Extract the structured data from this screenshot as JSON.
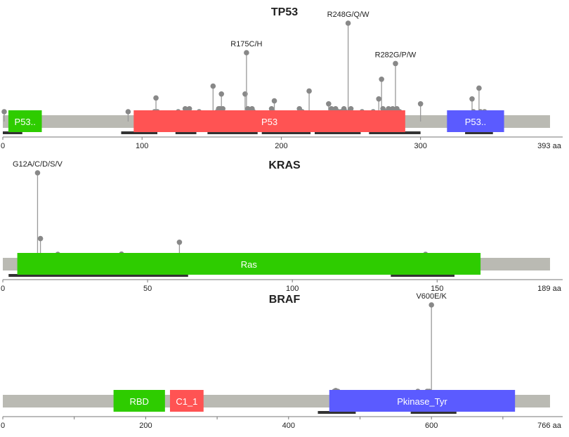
{
  "colors": {
    "backbone": "#babab3",
    "lollipop": "#999999",
    "head": "#888888",
    "region_bar": "#333333",
    "axis": "#777777",
    "text": "#222222",
    "domain_text": "#ffffff"
  },
  "chart_data": [
    {
      "type": "lollipop",
      "title": "TP53",
      "length": 393,
      "unit_label": "393 aa",
      "ticks": [
        0,
        100,
        200,
        300
      ],
      "domains": [
        {
          "name": "P53..",
          "start": 4,
          "end": 28,
          "color": "#2ecc00"
        },
        {
          "name": "P53",
          "start": 94,
          "end": 289,
          "color": "#ff5353"
        },
        {
          "name": "P53..",
          "start": 319,
          "end": 360,
          "color": "#5b5bff"
        }
      ],
      "regions": [
        {
          "start": 0,
          "end": 14
        },
        {
          "start": 85,
          "end": 111
        },
        {
          "start": 124,
          "end": 139
        },
        {
          "start": 147,
          "end": 183
        },
        {
          "start": 186,
          "end": 221
        },
        {
          "start": 224,
          "end": 257
        },
        {
          "start": 263,
          "end": 300
        },
        {
          "start": 332,
          "end": 352
        }
      ],
      "max_count": 100,
      "mutations": [
        {
          "pos": 1,
          "count": 8
        },
        {
          "pos": 90,
          "count": 8
        },
        {
          "pos": 109,
          "count": 8
        },
        {
          "pos": 110,
          "count": 24
        },
        {
          "pos": 111,
          "count": 8
        },
        {
          "pos": 126,
          "count": 8
        },
        {
          "pos": 131,
          "count": 13
        },
        {
          "pos": 133,
          "count": 8
        },
        {
          "pos": 134,
          "count": 13
        },
        {
          "pos": 141,
          "count": 8
        },
        {
          "pos": 151,
          "count": 36
        },
        {
          "pos": 154,
          "count": 8
        },
        {
          "pos": 155,
          "count": 13
        },
        {
          "pos": 156,
          "count": 13
        },
        {
          "pos": 157,
          "count": 28
        },
        {
          "pos": 158,
          "count": 13
        },
        {
          "pos": 174,
          "count": 28
        },
        {
          "pos": 175,
          "count": 70,
          "label": "R175C/H"
        },
        {
          "pos": 176,
          "count": 13
        },
        {
          "pos": 178,
          "count": 8
        },
        {
          "pos": 179,
          "count": 13
        },
        {
          "pos": 180,
          "count": 8
        },
        {
          "pos": 193,
          "count": 13
        },
        {
          "pos": 194,
          "count": 8
        },
        {
          "pos": 195,
          "count": 21
        },
        {
          "pos": 213,
          "count": 13
        },
        {
          "pos": 215,
          "count": 8
        },
        {
          "pos": 220,
          "count": 31
        },
        {
          "pos": 234,
          "count": 18
        },
        {
          "pos": 236,
          "count": 13
        },
        {
          "pos": 237,
          "count": 8
        },
        {
          "pos": 238,
          "count": 8
        },
        {
          "pos": 239,
          "count": 13
        },
        {
          "pos": 241,
          "count": 8
        },
        {
          "pos": 243,
          "count": 8
        },
        {
          "pos": 245,
          "count": 13
        },
        {
          "pos": 246,
          "count": 8
        },
        {
          "pos": 248,
          "count": 100,
          "label": "R248G/Q/W"
        },
        {
          "pos": 249,
          "count": 8
        },
        {
          "pos": 250,
          "count": 13
        },
        {
          "pos": 258,
          "count": 8
        },
        {
          "pos": 266,
          "count": 8
        },
        {
          "pos": 270,
          "count": 23
        },
        {
          "pos": 272,
          "count": 43
        },
        {
          "pos": 273,
          "count": 13
        },
        {
          "pos": 275,
          "count": 8
        },
        {
          "pos": 277,
          "count": 13
        },
        {
          "pos": 278,
          "count": 8
        },
        {
          "pos": 280,
          "count": 13
        },
        {
          "pos": 282,
          "count": 59,
          "label": "R282G/P/W"
        },
        {
          "pos": 283,
          "count": 13
        },
        {
          "pos": 285,
          "count": 8
        },
        {
          "pos": 300,
          "count": 18
        },
        {
          "pos": 337,
          "count": 23
        },
        {
          "pos": 338,
          "count": 8
        },
        {
          "pos": 342,
          "count": 34
        },
        {
          "pos": 343,
          "count": 8
        },
        {
          "pos": 346,
          "count": 8
        }
      ]
    },
    {
      "type": "lollipop",
      "title": "KRAS",
      "length": 189,
      "unit_label": "189 aa",
      "ticks": [
        0,
        50,
        100,
        150
      ],
      "domains": [
        {
          "name": "Ras",
          "start": 5,
          "end": 165,
          "color": "#2ecc00"
        }
      ],
      "regions": [
        {
          "start": 2,
          "end": 64
        },
        {
          "start": 134,
          "end": 156
        }
      ],
      "max_count": 100,
      "mutations": [
        {
          "pos": 12,
          "count": 100,
          "label": "G12A/C/D/S/V"
        },
        {
          "pos": 13,
          "count": 28
        },
        {
          "pos": 19,
          "count": 9
        },
        {
          "pos": 41,
          "count": 11
        },
        {
          "pos": 61,
          "count": 24
        },
        {
          "pos": 146,
          "count": 9
        }
      ]
    },
    {
      "type": "lollipop",
      "title": "BRAF",
      "length": 766,
      "unit_label": "766 aa",
      "ticks": [
        0,
        100,
        200,
        300,
        400,
        500,
        600,
        700
      ],
      "tick_labels": [
        0,
        200,
        400,
        600
      ],
      "domains": [
        {
          "name": "RBD",
          "start": 155,
          "end": 227,
          "color": "#2ecc00"
        },
        {
          "name": "C1_1",
          "start": 234,
          "end": 281,
          "color": "#ff5353"
        },
        {
          "name": "Pkinase_Tyr",
          "start": 457,
          "end": 717,
          "color": "#5b5bff"
        }
      ],
      "regions": [
        {
          "start": 441,
          "end": 494
        },
        {
          "start": 571,
          "end": 635
        }
      ],
      "max_count": 100,
      "mutations": [
        {
          "pos": 464,
          "count": 9
        },
        {
          "pos": 466,
          "count": 11
        },
        {
          "pos": 469,
          "count": 9
        },
        {
          "pos": 581,
          "count": 9
        },
        {
          "pos": 594,
          "count": 9
        },
        {
          "pos": 597,
          "count": 9
        },
        {
          "pos": 600,
          "count": 100,
          "label": "V600E/K"
        }
      ]
    }
  ]
}
